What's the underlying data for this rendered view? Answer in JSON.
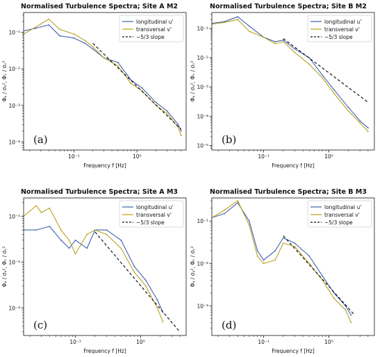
{
  "colors": {
    "longitudinal": "#3f5fb0",
    "transversal": "#b8a020",
    "slope": "#111111"
  },
  "chart_data": [
    {
      "type": "line",
      "panel_label": "(a)",
      "title": "Normalised Turbulence Spectra; Site A M2",
      "xlabel": "Frequency  f  [Hz]",
      "ylabel": "Φᵤ / σᵤ², Φᵥ / σᵥ²",
      "xscale": "log",
      "yscale": "log",
      "xlim": [
        0.016,
        6
      ],
      "ylim": [
        6e-05,
        0.35
      ],
      "xticks": [
        {
          "v": 0.1,
          "label": "10⁻¹"
        },
        {
          "v": 1,
          "label": "10⁰"
        }
      ],
      "yticks": [
        {
          "v": 0.1,
          "label": "10⁻¹"
        },
        {
          "v": 0.01,
          "label": "10⁻²"
        },
        {
          "v": 0.001,
          "label": "10⁻³"
        },
        {
          "v": 0.0001,
          "label": "10⁻⁴"
        }
      ],
      "legend_position": "top-right",
      "grid": false,
      "series": [
        {
          "name": "longitudinal u'",
          "key": "u",
          "x": [
            0.016,
            0.025,
            0.04,
            0.06,
            0.1,
            0.15,
            0.2,
            0.3,
            0.5,
            0.8,
            1.2,
            2.0,
            3.0,
            4.5,
            5.0
          ],
          "y": [
            0.11,
            0.13,
            0.16,
            0.08,
            0.07,
            0.05,
            0.035,
            0.02,
            0.015,
            0.005,
            0.003,
            0.0012,
            0.0007,
            0.0003,
            0.0002
          ]
        },
        {
          "name": "transversal v'",
          "key": "v",
          "x": [
            0.016,
            0.025,
            0.04,
            0.06,
            0.1,
            0.15,
            0.2,
            0.3,
            0.5,
            0.8,
            1.2,
            2.0,
            3.0,
            4.5,
            5.0
          ],
          "y": [
            0.09,
            0.14,
            0.23,
            0.12,
            0.09,
            0.06,
            0.04,
            0.02,
            0.012,
            0.004,
            0.0025,
            0.001,
            0.0006,
            0.00025,
            0.00015
          ]
        }
      ],
      "slope_line": {
        "name": "−5/3 slope",
        "x": [
          0.2,
          5.0
        ],
        "y": [
          0.05,
          0.00022
        ]
      }
    },
    {
      "type": "line",
      "panel_label": "(b)",
      "title": "Normalised Turbulence Spectra; Site B M2",
      "xlabel": "Frequency  f  [Hz]",
      "ylabel": "Φᵤ / σᵤ², Φᵥ / σᵥ²",
      "xscale": "log",
      "yscale": "log",
      "xlim": [
        0.016,
        5
      ],
      "ylim": [
        7e-06,
        0.35
      ],
      "xticks": [
        {
          "v": 0.1,
          "label": "10⁻¹"
        },
        {
          "v": 1,
          "label": "10⁰"
        }
      ],
      "yticks": [
        {
          "v": 0.1,
          "label": "10⁻¹"
        },
        {
          "v": 0.01,
          "label": "10⁻²"
        },
        {
          "v": 0.001,
          "label": "10⁻³"
        },
        {
          "v": 0.0001,
          "label": "10⁻⁴"
        },
        {
          "v": 1e-05,
          "label": "10⁻⁵"
        }
      ],
      "legend_position": "top-right",
      "grid": false,
      "series": [
        {
          "name": "longitudinal u'",
          "key": "u",
          "x": [
            0.016,
            0.025,
            0.04,
            0.06,
            0.1,
            0.15,
            0.2,
            0.3,
            0.5,
            0.8,
            1.2,
            2.0,
            3.0,
            4.0
          ],
          "y": [
            0.15,
            0.17,
            0.25,
            0.12,
            0.05,
            0.035,
            0.04,
            0.02,
            0.01,
            0.0025,
            0.0008,
            0.0002,
            7e-05,
            4e-05
          ]
        },
        {
          "name": "transversal v'",
          "key": "v",
          "x": [
            0.016,
            0.025,
            0.04,
            0.06,
            0.1,
            0.15,
            0.2,
            0.3,
            0.5,
            0.8,
            1.2,
            2.0,
            3.0,
            4.0
          ],
          "y": [
            0.14,
            0.16,
            0.2,
            0.08,
            0.05,
            0.03,
            0.035,
            0.015,
            0.006,
            0.002,
            0.0006,
            0.00015,
            6e-05,
            3e-05
          ]
        }
      ],
      "slope_line": {
        "name": "−5/3 slope",
        "x": [
          0.2,
          4.0
        ],
        "y": [
          0.045,
          0.0003
        ]
      }
    },
    {
      "type": "line",
      "panel_label": "(c)",
      "title": "Normalised Turbulence Spectra; Site A M3",
      "xlabel": "Frequency  f  [Hz]",
      "ylabel": "Φᵤ / σᵤ², Φᵥ / σᵥ²",
      "xscale": "log",
      "yscale": "log",
      "xlim": [
        0.016,
        5
      ],
      "ylim": [
        0.00025,
        0.25
      ],
      "xticks": [
        {
          "v": 0.1,
          "label": "10⁻¹"
        },
        {
          "v": 1,
          "label": "10⁰"
        }
      ],
      "yticks": [
        {
          "v": 0.1,
          "label": "10⁻¹"
        },
        {
          "v": 0.01,
          "label": "10⁻²"
        },
        {
          "v": 0.001,
          "label": "10⁻³"
        }
      ],
      "legend_position": "top-right",
      "grid": false,
      "series": [
        {
          "name": "longitudinal u'",
          "key": "u",
          "x": [
            0.016,
            0.025,
            0.04,
            0.06,
            0.08,
            0.1,
            0.15,
            0.2,
            0.3,
            0.5,
            0.8,
            1.2,
            1.8,
            2.2
          ],
          "y": [
            0.05,
            0.05,
            0.06,
            0.03,
            0.02,
            0.03,
            0.02,
            0.05,
            0.05,
            0.03,
            0.008,
            0.004,
            0.0015,
            0.0008
          ]
        },
        {
          "name": "transversal v'",
          "key": "v",
          "x": [
            0.016,
            0.025,
            0.03,
            0.04,
            0.06,
            0.08,
            0.1,
            0.15,
            0.2,
            0.3,
            0.5,
            0.8,
            1.2,
            1.8,
            2.2
          ],
          "y": [
            0.1,
            0.17,
            0.12,
            0.15,
            0.05,
            0.03,
            0.015,
            0.04,
            0.05,
            0.04,
            0.02,
            0.006,
            0.003,
            0.001,
            0.0005
          ]
        }
      ],
      "slope_line": {
        "name": "−5/3 slope",
        "x": [
          0.2,
          4.0
        ],
        "y": [
          0.045,
          0.0003
        ]
      }
    },
    {
      "type": "line",
      "panel_label": "(d)",
      "title": "Normalised Turbulence Spectra; Site B M3",
      "xlabel": "Frequency  f  [Hz]",
      "ylabel": "Φᵤ / σᵤ², Φᵥ / σᵥ²",
      "xscale": "log",
      "yscale": "log",
      "xlim": [
        0.016,
        5
      ],
      "ylim": [
        0.0002,
        0.35
      ],
      "xticks": [
        {
          "v": 0.1,
          "label": "10⁻¹"
        },
        {
          "v": 1,
          "label": "10⁰"
        }
      ],
      "yticks": [
        {
          "v": 0.1,
          "label": "10⁻¹"
        },
        {
          "v": 0.01,
          "label": "10⁻²"
        },
        {
          "v": 0.001,
          "label": "10⁻³"
        }
      ],
      "legend_position": "top-right",
      "grid": false,
      "series": [
        {
          "name": "longitudinal u'",
          "key": "u",
          "x": [
            0.016,
            0.025,
            0.04,
            0.06,
            0.08,
            0.1,
            0.15,
            0.2,
            0.3,
            0.5,
            0.8,
            1.2,
            1.8,
            2.2
          ],
          "y": [
            0.12,
            0.15,
            0.27,
            0.1,
            0.02,
            0.012,
            0.02,
            0.04,
            0.03,
            0.015,
            0.005,
            0.002,
            0.001,
            0.0006
          ]
        },
        {
          "name": "transversal v'",
          "key": "v",
          "x": [
            0.016,
            0.025,
            0.04,
            0.06,
            0.08,
            0.1,
            0.15,
            0.2,
            0.3,
            0.5,
            0.8,
            1.2,
            1.8,
            2.2
          ],
          "y": [
            0.12,
            0.18,
            0.3,
            0.08,
            0.015,
            0.01,
            0.012,
            0.03,
            0.025,
            0.01,
            0.004,
            0.0015,
            0.0008,
            0.0004
          ]
        }
      ],
      "slope_line": {
        "name": "−5/3 slope",
        "x": [
          0.2,
          2.5
        ],
        "y": [
          0.045,
          0.0006
        ]
      }
    }
  ]
}
